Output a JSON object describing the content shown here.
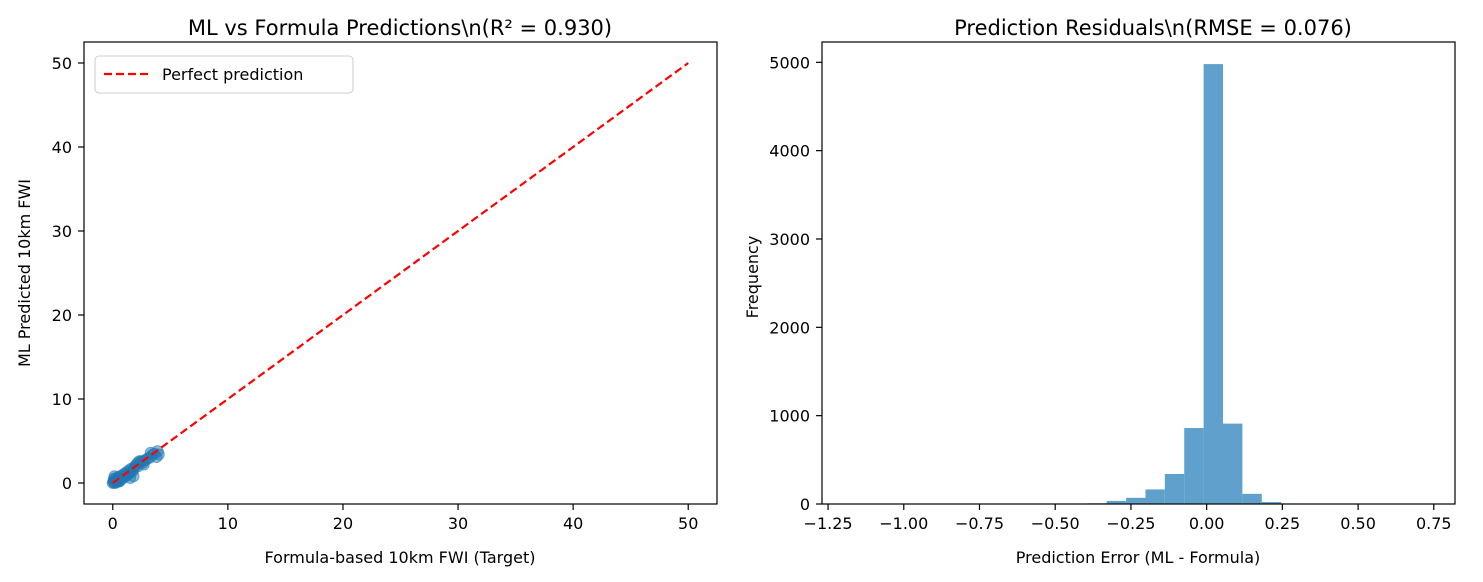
{
  "chart_data": [
    {
      "type": "scatter",
      "title": "ML vs Formula Predictions\\n(R² = 0.930)",
      "xlabel": "Formula-based 10km FWI (Target)",
      "ylabel": "ML Predicted 10km FWI",
      "xlim": [
        -2.5,
        52.5
      ],
      "ylim": [
        -2.5,
        52.5
      ],
      "xticks": [
        0,
        10,
        20,
        30,
        40,
        50
      ],
      "yticks": [
        0,
        10,
        20,
        30,
        40,
        50
      ],
      "grid": false,
      "legend_position": "upper-left",
      "legend": [
        "Perfect prediction"
      ],
      "reference_line": {
        "name": "Perfect prediction",
        "x": [
          0,
          50
        ],
        "y": [
          0,
          50
        ],
        "color": "#ff0000",
        "style": "dashed"
      },
      "points_color": "#1f77b4",
      "points": [
        [
          0.0,
          0.0
        ],
        [
          0.05,
          0.2
        ],
        [
          0.1,
          0.5
        ],
        [
          0.1,
          0.1
        ],
        [
          0.15,
          0.8
        ],
        [
          0.2,
          0.0
        ],
        [
          0.25,
          0.3
        ],
        [
          0.3,
          0.6
        ],
        [
          0.35,
          0.1
        ],
        [
          0.4,
          0.3
        ],
        [
          0.45,
          0.5
        ],
        [
          0.5,
          0.2
        ],
        [
          0.55,
          0.6
        ],
        [
          0.6,
          0.8
        ],
        [
          0.7,
          0.4
        ],
        [
          0.8,
          0.9
        ],
        [
          0.9,
          0.6
        ],
        [
          1.0,
          1.1
        ],
        [
          1.1,
          0.8
        ],
        [
          1.2,
          1.3
        ],
        [
          1.3,
          1.0
        ],
        [
          1.4,
          1.5
        ],
        [
          1.5,
          1.2
        ],
        [
          1.6,
          1.7
        ],
        [
          1.7,
          1.4
        ],
        [
          1.8,
          1.6
        ],
        [
          1.9,
          1.9
        ],
        [
          2.0,
          2.1
        ],
        [
          2.2,
          2.0
        ],
        [
          2.4,
          2.5
        ],
        [
          2.6,
          2.4
        ],
        [
          2.8,
          2.7
        ],
        [
          3.0,
          2.9
        ],
        [
          3.2,
          3.0
        ],
        [
          3.4,
          3.3
        ],
        [
          3.6,
          3.5
        ],
        [
          3.8,
          3.1
        ],
        [
          4.0,
          3.4
        ],
        [
          2.5,
          2.6
        ],
        [
          1.5,
          0.6
        ],
        [
          1.2,
          0.9
        ],
        [
          0.6,
          0.2
        ],
        [
          2.1,
          2.3
        ],
        [
          2.3,
          2.6
        ],
        [
          1.8,
          0.8
        ],
        [
          2.7,
          2.2
        ],
        [
          3.3,
          3.6
        ],
        [
          3.9,
          3.8
        ]
      ]
    },
    {
      "type": "bar",
      "title": "Prediction Residuals\\n(RMSE = 0.076)",
      "xlabel": "Prediction Error (ML - Formula)",
      "ylabel": "Frequency",
      "xlim": [
        -1.27,
        0.82
      ],
      "ylim": [
        0,
        5230
      ],
      "xticks": [
        -1.25,
        -1.0,
        -0.75,
        -0.5,
        -0.25,
        0.0,
        0.25,
        0.5,
        0.75
      ],
      "xtick_labels": [
        "−1.25",
        "−1.00",
        "−0.75",
        "−0.50",
        "−0.25",
        "0.00",
        "0.25",
        "0.50",
        "0.75"
      ],
      "yticks": [
        0,
        1000,
        2000,
        3000,
        4000,
        5000
      ],
      "grid": false,
      "bar_color": "#5fa0cc",
      "bins": [
        {
          "x0": -1.226,
          "x1": -1.162,
          "count": 1
        },
        {
          "x0": -0.522,
          "x1": -0.458,
          "count": 2
        },
        {
          "x0": -0.458,
          "x1": -0.394,
          "count": 3
        },
        {
          "x0": -0.394,
          "x1": -0.33,
          "count": 8
        },
        {
          "x0": -0.33,
          "x1": -0.266,
          "count": 35
        },
        {
          "x0": -0.266,
          "x1": -0.202,
          "count": 70
        },
        {
          "x0": -0.202,
          "x1": -0.138,
          "count": 165
        },
        {
          "x0": -0.138,
          "x1": -0.074,
          "count": 340
        },
        {
          "x0": -0.074,
          "x1": -0.01,
          "count": 860
        },
        {
          "x0": -0.01,
          "x1": 0.054,
          "count": 4980
        },
        {
          "x0": 0.054,
          "x1": 0.118,
          "count": 910
        },
        {
          "x0": 0.118,
          "x1": 0.182,
          "count": 115
        },
        {
          "x0": 0.182,
          "x1": 0.246,
          "count": 22
        },
        {
          "x0": 0.246,
          "x1": 0.31,
          "count": 6
        },
        {
          "x0": 0.31,
          "x1": 0.374,
          "count": 2
        },
        {
          "x0": 0.758,
          "x1": 0.822,
          "count": 1
        }
      ]
    }
  ]
}
